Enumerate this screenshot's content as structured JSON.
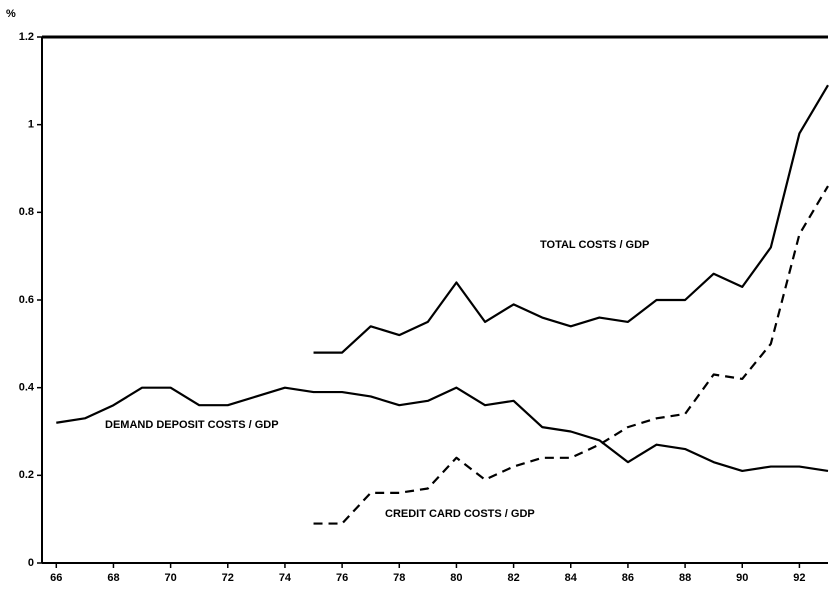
{
  "chart_data": {
    "type": "line",
    "y_unit": "%",
    "x": [
      66,
      67,
      68,
      69,
      70,
      71,
      72,
      73,
      74,
      75,
      76,
      77,
      78,
      79,
      80,
      81,
      82,
      83,
      84,
      85,
      86,
      87,
      88,
      89,
      90,
      91,
      92,
      93
    ],
    "series": [
      {
        "name": "DEMAND DEPOSIT COSTS / GDP",
        "color": "#000000",
        "dashed": false,
        "values": [
          0.32,
          0.33,
          0.36,
          0.4,
          0.4,
          0.36,
          0.36,
          0.38,
          0.4,
          0.39,
          0.39,
          0.38,
          0.36,
          0.37,
          0.4,
          0.36,
          0.37,
          0.31,
          0.3,
          0.28,
          0.23,
          0.27,
          0.26,
          0.23,
          0.21,
          0.22,
          0.22,
          0.21
        ]
      },
      {
        "name": "TOTAL COSTS / GDP",
        "color": "#000000",
        "dashed": false,
        "values": [
          null,
          null,
          null,
          null,
          null,
          null,
          null,
          null,
          null,
          0.48,
          0.48,
          0.54,
          0.52,
          0.55,
          0.64,
          0.55,
          0.59,
          0.56,
          0.54,
          0.56,
          0.55,
          0.6,
          0.6,
          0.66,
          0.63,
          0.72,
          0.98,
          1.09
        ]
      },
      {
        "name": "CREDIT CARD COSTS / GDP",
        "color": "#000000",
        "dashed": true,
        "values": [
          null,
          null,
          null,
          null,
          null,
          null,
          null,
          null,
          null,
          0.09,
          0.09,
          0.16,
          0.16,
          0.17,
          0.24,
          0.19,
          0.22,
          0.24,
          0.24,
          0.27,
          0.31,
          0.33,
          0.34,
          0.43,
          0.42,
          0.5,
          0.75,
          0.86
        ]
      }
    ],
    "xlim": [
      65.5,
      93
    ],
    "xticks": [
      66,
      68,
      70,
      72,
      74,
      76,
      78,
      80,
      82,
      84,
      86,
      88,
      90,
      92
    ],
    "ylim": [
      0,
      1.2
    ],
    "yticks": [
      0,
      0.2,
      0.4,
      0.6,
      0.8,
      1,
      1.2
    ]
  }
}
